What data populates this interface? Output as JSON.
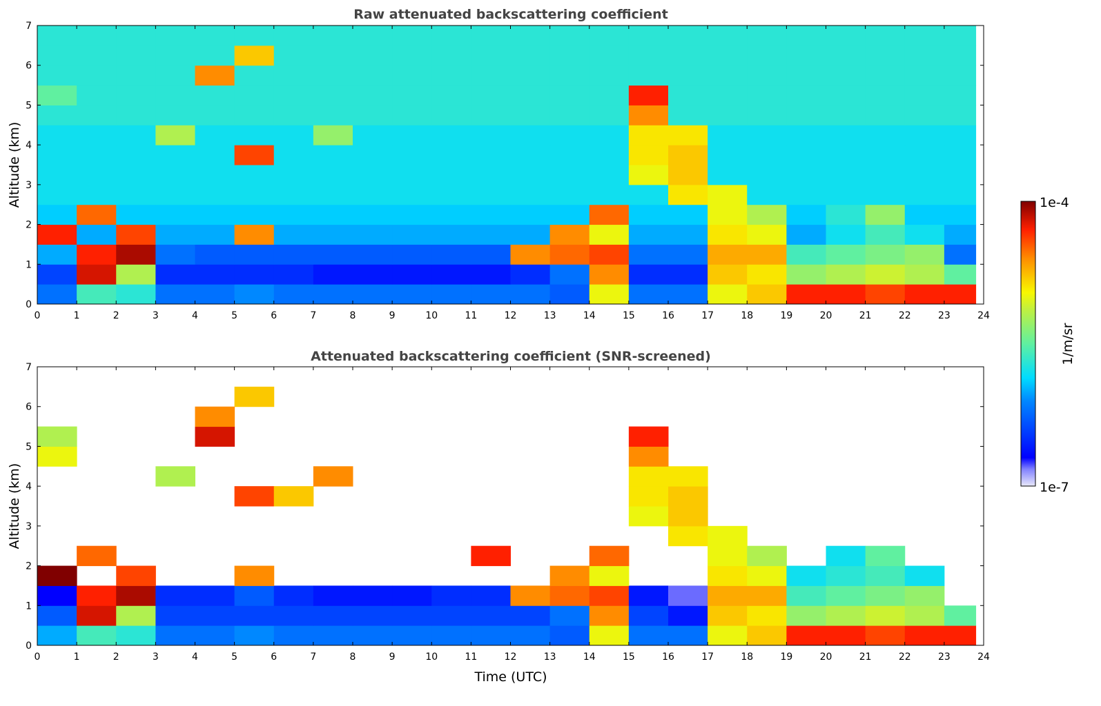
{
  "chart_data": {
    "type": "heatmap",
    "x_label": "Time (UTC)",
    "x_range": [
      0,
      24
    ],
    "x_ticks": [
      "0",
      "1",
      "2",
      "3",
      "4",
      "5",
      "6",
      "7",
      "8",
      "9",
      "10",
      "11",
      "12",
      "13",
      "14",
      "15",
      "16",
      "17",
      "18",
      "19",
      "20",
      "21",
      "22",
      "23",
      "24"
    ],
    "y_label": "Altitude (km)",
    "y_range": [
      0,
      7
    ],
    "y_ticks": [
      "0",
      "1",
      "2",
      "3",
      "4",
      "5",
      "6",
      "7"
    ],
    "colorbar": {
      "label": "1/m/sr",
      "min_label": "1e-7",
      "max_label": "1e-4",
      "log10_range": [
        -7,
        -4
      ],
      "scale": "log"
    },
    "cell_time_step_h": 1,
    "cell_alt_step_km": 0.5,
    "data_end_h": 23.8,
    "value_units": "log10(1/m/sr), rows from 0 km upward, null = screened/no data",
    "panels": [
      {
        "title": "Raw attenuated backscattering coefficient",
        "grid": [
          [
            -6.2,
            -5.6,
            -5.7,
            -6.2,
            -6.2,
            -6.1,
            -6.2,
            -6.2,
            -6.2,
            -6.2,
            -6.2,
            -6.2,
            -6.2,
            -6.3,
            -5.0,
            -6.2,
            -6.2,
            -5.0,
            -4.8,
            -4.3,
            -4.3,
            -4.4,
            -4.3,
            -4.3
          ],
          [
            -6.4,
            -4.2,
            -5.2,
            -6.5,
            -6.5,
            -6.5,
            -6.5,
            -6.6,
            -6.6,
            -6.6,
            -6.6,
            -6.6,
            -6.5,
            -6.2,
            -4.6,
            -6.5,
            -6.5,
            -4.8,
            -4.9,
            -5.3,
            -5.2,
            -5.1,
            -5.2,
            -5.5
          ],
          [
            -6.0,
            -4.3,
            -4.1,
            -6.2,
            -6.3,
            -6.3,
            -6.3,
            -6.3,
            -6.3,
            -6.3,
            -6.3,
            -6.3,
            -4.6,
            -4.5,
            -4.4,
            -6.2,
            -6.2,
            -4.7,
            -4.7,
            -5.6,
            -5.5,
            -5.4,
            -5.3,
            -6.2
          ],
          [
            -4.3,
            -6.0,
            -4.4,
            -6.0,
            -6.0,
            -4.6,
            -6.0,
            -6.0,
            -6.0,
            -6.0,
            -6.0,
            -6.0,
            -6.0,
            -4.6,
            -5.0,
            -6.0,
            -6.0,
            -4.9,
            -5.0,
            -6.0,
            -5.8,
            -5.6,
            -5.8,
            -6.0
          ],
          [
            -5.9,
            -4.5,
            -5.9,
            -5.9,
            -5.9,
            -5.9,
            -5.9,
            -5.9,
            -5.9,
            -5.9,
            -5.9,
            -5.9,
            -5.9,
            -5.9,
            -4.5,
            -5.9,
            -5.9,
            -5.0,
            -5.2,
            -5.9,
            -5.7,
            -5.3,
            -5.9,
            -5.9
          ],
          [
            -5.8,
            -5.8,
            -5.8,
            -5.8,
            -5.8,
            -5.8,
            -5.8,
            -5.8,
            -5.8,
            -5.8,
            -5.8,
            -5.8,
            -5.8,
            -5.8,
            -5.8,
            -5.8,
            -4.9,
            -5.0,
            -5.8,
            -5.8,
            -5.8,
            -5.8,
            -5.8,
            -5.8
          ],
          [
            -5.8,
            -5.8,
            -5.8,
            -5.8,
            -5.8,
            -5.8,
            -5.8,
            -5.8,
            -5.8,
            -5.8,
            -5.8,
            -5.8,
            -5.8,
            -5.8,
            -5.8,
            -5.0,
            -4.8,
            -5.8,
            -5.8,
            -5.8,
            -5.8,
            -5.8,
            -5.8,
            -5.8
          ],
          [
            -5.8,
            -5.8,
            -5.8,
            -5.8,
            -5.8,
            -4.4,
            -5.8,
            -5.8,
            -5.8,
            -5.8,
            -5.8,
            -5.8,
            -5.8,
            -5.8,
            -5.8,
            -4.9,
            -4.8,
            -5.8,
            -5.8,
            -5.8,
            -5.8,
            -5.8,
            -5.8,
            -5.8
          ],
          [
            -5.8,
            -5.8,
            -5.8,
            -5.2,
            -5.8,
            -5.8,
            -5.8,
            -5.3,
            -5.8,
            -5.8,
            -5.8,
            -5.8,
            -5.8,
            -5.8,
            -5.8,
            -4.9,
            -4.9,
            -5.8,
            -5.8,
            -5.8,
            -5.8,
            -5.8,
            -5.8,
            -5.8
          ],
          [
            -5.7,
            -5.7,
            -5.7,
            -5.7,
            -5.7,
            -5.7,
            -5.7,
            -5.7,
            -5.7,
            -5.7,
            -5.7,
            -5.7,
            -5.7,
            -5.7,
            -5.7,
            -4.6,
            -5.7,
            -5.7,
            -5.7,
            -5.7,
            -5.7,
            -5.7,
            -5.7,
            -5.7
          ],
          [
            -5.5,
            -5.7,
            -5.7,
            -5.7,
            -5.7,
            -5.7,
            -5.7,
            -5.7,
            -5.7,
            -5.7,
            -5.7,
            -5.7,
            -5.7,
            -5.7,
            -5.7,
            -4.3,
            -5.7,
            -5.7,
            -5.7,
            -5.7,
            -5.7,
            -5.7,
            -5.7,
            -5.7
          ],
          [
            -5.7,
            -5.7,
            -5.7,
            -5.7,
            -4.6,
            -5.7,
            -5.7,
            -5.7,
            -5.7,
            -5.7,
            -5.7,
            -5.7,
            -5.7,
            -5.7,
            -5.7,
            -5.7,
            -5.7,
            -5.7,
            -5.7,
            -5.7,
            -5.7,
            -5.7,
            -5.7,
            -5.7
          ],
          [
            -5.7,
            -5.7,
            -5.7,
            -5.7,
            -5.7,
            -4.8,
            -5.7,
            -5.7,
            -5.7,
            -5.7,
            -5.7,
            -5.7,
            -5.7,
            -5.7,
            -5.7,
            -5.7,
            -5.7,
            -5.7,
            -5.7,
            -5.7,
            -5.7,
            -5.7,
            -5.7,
            -5.7
          ],
          [
            -5.7,
            -5.7,
            -5.7,
            -5.7,
            -5.7,
            -5.7,
            -5.7,
            -5.7,
            -5.7,
            -5.7,
            -5.7,
            -5.7,
            -5.7,
            -5.7,
            -5.7,
            -5.7,
            -5.7,
            -5.7,
            -5.7,
            -5.7,
            -5.7,
            -5.7,
            -5.7,
            -5.7
          ]
        ]
      },
      {
        "title": "Attenuated backscattering coefficient (SNR-screened)",
        "grid": [
          [
            -6.0,
            -5.6,
            -5.7,
            -6.2,
            -6.2,
            -6.1,
            -6.2,
            -6.2,
            -6.2,
            -6.2,
            -6.2,
            -6.2,
            -6.2,
            -6.3,
            -5.0,
            -6.2,
            -6.2,
            -5.0,
            -4.8,
            -4.3,
            -4.3,
            -4.4,
            -4.3,
            -4.3
          ],
          [
            -6.3,
            -4.2,
            -5.2,
            -6.4,
            -6.4,
            -6.4,
            -6.4,
            -6.4,
            -6.4,
            -6.4,
            -6.4,
            -6.4,
            -6.4,
            -6.2,
            -4.6,
            -6.4,
            -6.6,
            -4.8,
            -4.9,
            -5.3,
            -5.2,
            -5.1,
            -5.2,
            -5.5
          ],
          [
            -6.7,
            -4.3,
            -4.1,
            -6.5,
            -6.5,
            -6.3,
            -6.5,
            -6.6,
            -6.6,
            -6.6,
            -6.5,
            -6.5,
            -4.6,
            -4.5,
            -4.4,
            -6.6,
            -6.8,
            -4.7,
            -4.7,
            -5.6,
            -5.5,
            -5.4,
            -5.3,
            null
          ],
          [
            -4.0,
            null,
            -4.4,
            null,
            null,
            -4.6,
            null,
            null,
            null,
            null,
            null,
            null,
            null,
            -4.6,
            -5.0,
            null,
            null,
            -4.9,
            -5.0,
            -5.8,
            -5.7,
            -5.6,
            -5.8,
            null
          ],
          [
            null,
            -4.5,
            null,
            null,
            null,
            null,
            null,
            null,
            null,
            null,
            null,
            -4.3,
            null,
            null,
            -4.5,
            null,
            null,
            -5.0,
            -5.2,
            null,
            -5.8,
            -5.5,
            null,
            null
          ],
          [
            null,
            null,
            null,
            null,
            null,
            null,
            null,
            null,
            null,
            null,
            null,
            null,
            null,
            null,
            null,
            null,
            -4.9,
            -5.0,
            null,
            null,
            null,
            null,
            null,
            null
          ],
          [
            null,
            null,
            null,
            null,
            null,
            null,
            null,
            null,
            null,
            null,
            null,
            null,
            null,
            null,
            null,
            -5.0,
            -4.8,
            null,
            null,
            null,
            null,
            null,
            null,
            null
          ],
          [
            null,
            null,
            null,
            null,
            null,
            -4.4,
            -4.8,
            null,
            null,
            null,
            null,
            null,
            null,
            null,
            null,
            -4.9,
            -4.8,
            null,
            null,
            null,
            null,
            null,
            null,
            null
          ],
          [
            null,
            null,
            null,
            -5.2,
            null,
            null,
            null,
            -4.6,
            null,
            null,
            null,
            null,
            null,
            null,
            null,
            -4.9,
            -4.9,
            null,
            null,
            null,
            null,
            null,
            null,
            null
          ],
          [
            -5.0,
            null,
            null,
            null,
            null,
            null,
            null,
            null,
            null,
            null,
            null,
            null,
            null,
            null,
            null,
            -4.6,
            null,
            null,
            null,
            null,
            null,
            null,
            null,
            null
          ],
          [
            -5.2,
            null,
            null,
            null,
            -4.2,
            null,
            null,
            null,
            null,
            null,
            null,
            null,
            null,
            null,
            null,
            -4.3,
            null,
            null,
            null,
            null,
            null,
            null,
            null,
            null
          ],
          [
            null,
            null,
            null,
            null,
            -4.6,
            null,
            null,
            null,
            null,
            null,
            null,
            null,
            null,
            null,
            null,
            null,
            null,
            null,
            null,
            null,
            null,
            null,
            null,
            null
          ],
          [
            null,
            null,
            null,
            null,
            null,
            -4.8,
            null,
            null,
            null,
            null,
            null,
            null,
            null,
            null,
            null,
            null,
            null,
            null,
            null,
            null,
            null,
            null,
            null,
            null
          ],
          [
            null,
            null,
            null,
            null,
            null,
            null,
            null,
            null,
            null,
            null,
            null,
            null,
            null,
            null,
            null,
            null,
            null,
            null,
            null,
            null,
            null,
            null,
            null,
            null
          ]
        ]
      }
    ]
  }
}
